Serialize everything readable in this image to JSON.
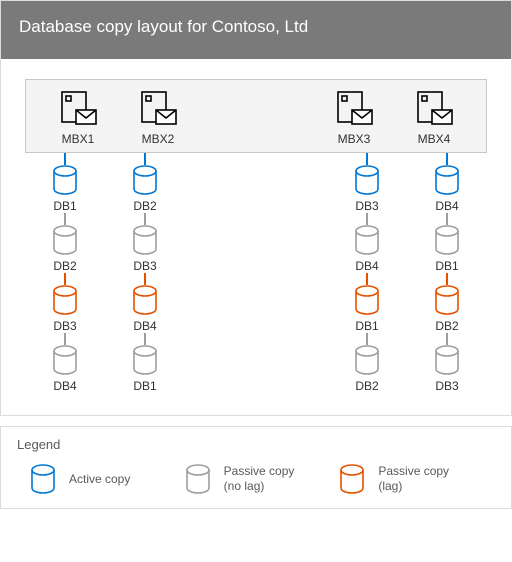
{
  "title": "Database copy layout for Contoso, Ltd",
  "colors": {
    "title_bg": "#7a7a7a",
    "title_text": "#ffffff",
    "border": "#dcdcdc",
    "inner_border": "#c8c8c8",
    "server_bg": "#f4f4f4",
    "label_text": "#323232",
    "legend_text": "#595959",
    "icon_stroke": "#000000",
    "active": "#0078d4",
    "passive": "#9e9e9e",
    "lag": "#e65100"
  },
  "stroke_width": 1.6,
  "servers": [
    {
      "id": "s1",
      "label": "MBX1",
      "group": 0
    },
    {
      "id": "s2",
      "label": "MBX2",
      "group": 0
    },
    {
      "id": "s3",
      "label": "MBX3",
      "group": 1
    },
    {
      "id": "s4",
      "label": "MBX4",
      "group": 1
    }
  ],
  "db_rows": [
    [
      {
        "label": "DB1",
        "state": "active"
      },
      {
        "label": "DB2",
        "state": "active"
      },
      {
        "label": "DB3",
        "state": "active"
      },
      {
        "label": "DB4",
        "state": "active"
      }
    ],
    [
      {
        "label": "DB2",
        "state": "passive"
      },
      {
        "label": "DB3",
        "state": "passive"
      },
      {
        "label": "DB4",
        "state": "passive"
      },
      {
        "label": "DB1",
        "state": "passive"
      }
    ],
    [
      {
        "label": "DB3",
        "state": "lag"
      },
      {
        "label": "DB4",
        "state": "lag"
      },
      {
        "label": "DB1",
        "state": "lag"
      },
      {
        "label": "DB2",
        "state": "lag"
      }
    ],
    [
      {
        "label": "DB4",
        "state": "passive"
      },
      {
        "label": "DB1",
        "state": "passive"
      },
      {
        "label": "DB2",
        "state": "passive"
      },
      {
        "label": "DB3",
        "state": "passive"
      }
    ]
  ],
  "legend": {
    "title": "Legend",
    "items": [
      {
        "state": "active",
        "text": "Active copy"
      },
      {
        "state": "passive",
        "text": "Passive copy\n(no lag)"
      },
      {
        "state": "lag",
        "text": "Passive copy\n(lag)"
      }
    ]
  }
}
